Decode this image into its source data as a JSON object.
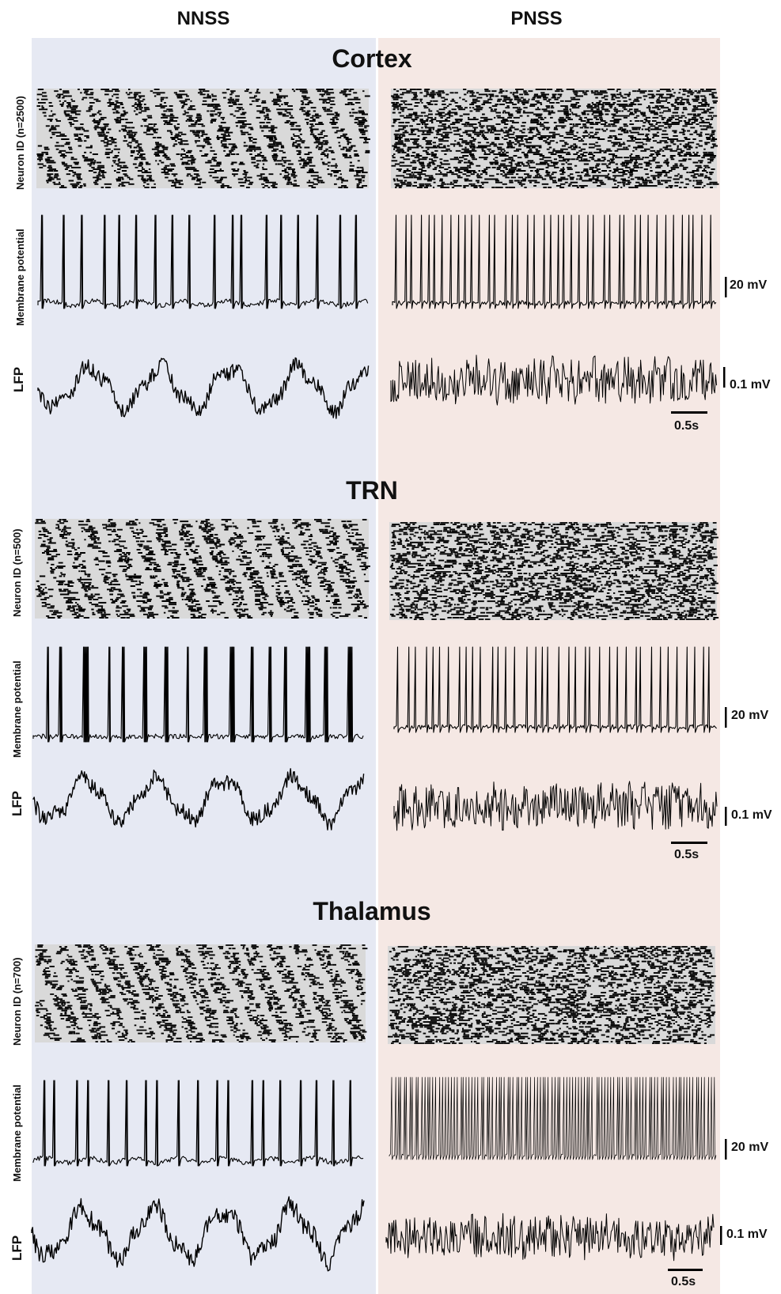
{
  "columns": {
    "left": "NNSS",
    "right": "PNSS"
  },
  "colors": {
    "nnss_bg": "#e6e9f3",
    "pnss_bg": "#f5e8e4",
    "trace": "#000000",
    "raster_bg": "#d9d9d9"
  },
  "sections": [
    {
      "title": "Cortex",
      "raster_label": "Neuron ID (n=2500)",
      "membrane_label": "Membrane potential",
      "lfp_label": "LFP",
      "vm_scale": "20 mV",
      "lfp_scale": "0.1 mV",
      "time_scale": "0.5s"
    },
    {
      "title": "TRN",
      "raster_label": "Neuron ID (n=500)",
      "membrane_label": "Membrane potential",
      "lfp_label": "LFP",
      "vm_scale": "20 mV",
      "lfp_scale": "0.1 mV",
      "time_scale": "0.5s"
    },
    {
      "title": "Thalamus",
      "raster_label": "Neuron ID (n=700)",
      "membrane_label": "Membrane potential",
      "lfp_label": "LFP",
      "vm_scale": "20 mV",
      "lfp_scale": "0.1 mV",
      "time_scale": "0.5s"
    }
  ]
}
